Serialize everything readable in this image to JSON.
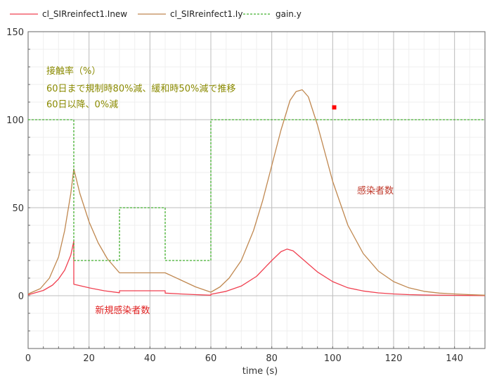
{
  "chart_data": {
    "type": "line",
    "xlabel": "time (s)",
    "xlim": [
      0,
      150
    ],
    "ylim": [
      -30,
      150
    ],
    "grid": true,
    "legend_placement": "top",
    "x_ticks": [
      0,
      20,
      40,
      60,
      80,
      100,
      120,
      140
    ],
    "y_ticks": [
      0,
      50,
      100,
      150
    ],
    "series": [
      {
        "name": "cl_SIRreinfect1.Inew",
        "color": "#f04050",
        "x": [
          0,
          5,
          8,
          10,
          12,
          14,
          15,
          15.001,
          20,
          25,
          30,
          30.001,
          35,
          40,
          45,
          45.001,
          50,
          55,
          60,
          60.001,
          65,
          70,
          75,
          80,
          83,
          85,
          87,
          90,
          95,
          100,
          105,
          110,
          115,
          120,
          125,
          130,
          140,
          150
        ],
        "y": [
          0.5,
          3,
          6,
          9.5,
          14.5,
          23,
          31,
          6.5,
          4.5,
          2.8,
          1.7,
          2.8,
          2.8,
          2.8,
          2.8,
          1.5,
          1.0,
          0.6,
          0.3,
          0.8,
          2.5,
          5.5,
          11,
          20,
          25,
          26.5,
          25.5,
          21,
          13.5,
          8,
          4.5,
          2.7,
          1.6,
          1.0,
          0.6,
          0.4,
          0.2,
          0.1
        ]
      },
      {
        "name": "cl_SIRreinfect1.Iy",
        "color": "#c08850",
        "x": [
          0,
          4,
          7,
          10,
          12,
          14,
          15,
          17,
          20,
          23,
          26,
          30,
          35,
          40,
          45,
          50,
          55,
          60,
          63,
          66,
          70,
          74,
          77,
          80,
          83,
          86,
          88,
          90,
          92,
          95,
          100,
          105,
          110,
          115,
          120,
          125,
          130,
          135,
          140,
          145,
          150
        ],
        "y": [
          1,
          4,
          10,
          22,
          37,
          58,
          72,
          58,
          42,
          30,
          21,
          13,
          13,
          13,
          13,
          9,
          5,
          2,
          5,
          10,
          20,
          37,
          54,
          74,
          94,
          111,
          116,
          117,
          113,
          97,
          65,
          40,
          24,
          14,
          8,
          4.5,
          2.5,
          1.5,
          1,
          0.6,
          0.3
        ]
      },
      {
        "name": "gain.y",
        "color": "#44b030",
        "dashed": true,
        "x": [
          0,
          15,
          15,
          30,
          30,
          45,
          45,
          60,
          60,
          150
        ],
        "y": [
          100,
          100,
          20,
          20,
          50,
          50,
          20,
          20,
          100,
          100
        ]
      }
    ],
    "annotations": [
      {
        "text": "接触率（%）",
        "x": 6,
        "y": 126,
        "color": "#8a8a00"
      },
      {
        "text": "60日まで規制時80%減、緩和時50%減で推移",
        "x": 6,
        "y": 116,
        "color": "#8a8a00"
      },
      {
        "text": "60日以降、0%減",
        "x": 6,
        "y": 107,
        "color": "#8a8a00"
      },
      {
        "text": "感染者数",
        "x": 108,
        "y": 58,
        "color": "#c0392b"
      },
      {
        "text": "新規感染者数",
        "x": 22,
        "y": -10,
        "color": "#e02020"
      }
    ],
    "marker": {
      "x": 100.5,
      "y": 107,
      "color": "#ff0000"
    }
  }
}
